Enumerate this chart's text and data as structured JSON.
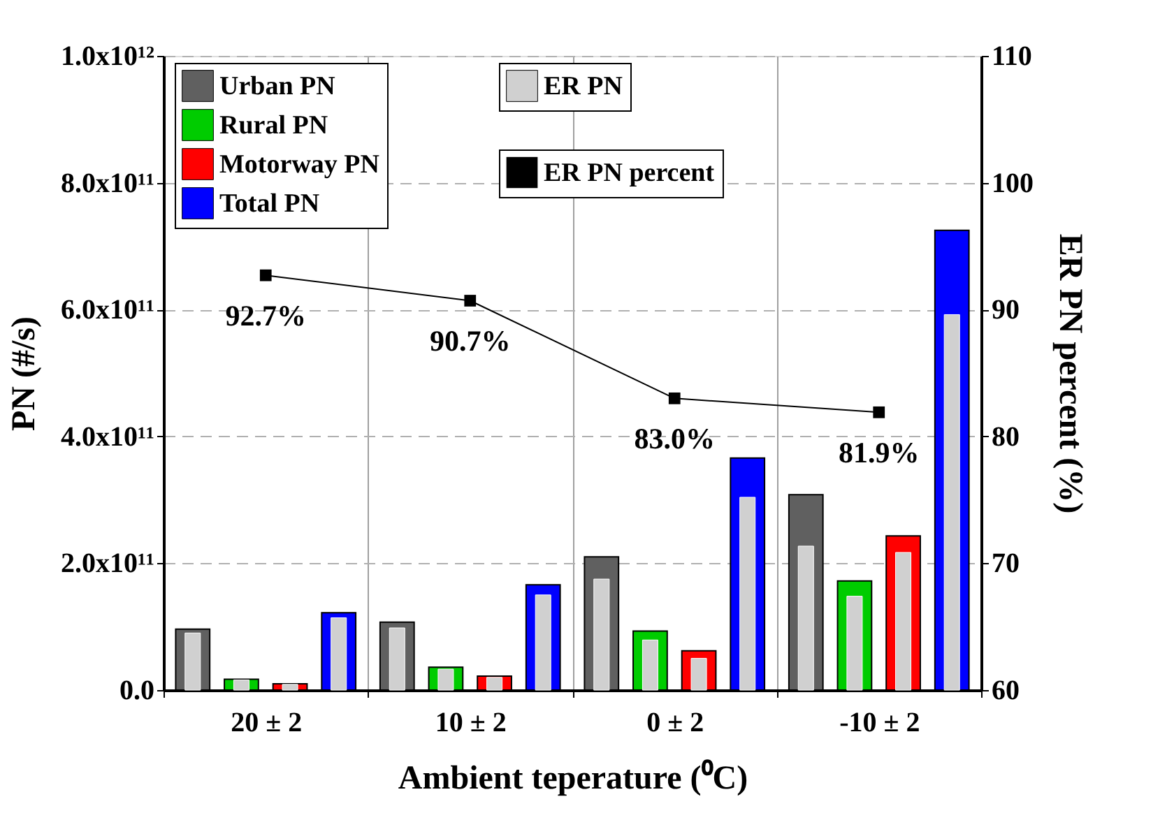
{
  "chart_data": {
    "type": "bar",
    "xlabel": "Ambient teperature (⁰C)",
    "ylabel": "PN (#/s)",
    "y2label": "ER PN percent (%)",
    "categories": [
      "20 ± 2",
      "10 ± 2",
      "0 ± 2",
      "-10 ± 2"
    ],
    "series": [
      {
        "name": "Urban PN",
        "color": "#606060",
        "values": [
          96000000000,
          107000000000,
          210000000000,
          308000000000
        ]
      },
      {
        "name": "Rural PN",
        "color": "#00cc00",
        "values": [
          17000000000,
          36000000000,
          93000000000,
          172000000000
        ]
      },
      {
        "name": "Motorway PN",
        "color": "#ff0000",
        "values": [
          10000000000,
          22000000000,
          62000000000,
          243000000000
        ]
      },
      {
        "name": "Total PN",
        "color": "#0000ff",
        "values": [
          122000000000,
          166000000000,
          366000000000,
          725000000000
        ]
      },
      {
        "name": "ER PN",
        "color": "#d0d0d0",
        "values": [
          90000000000,
          98000000000,
          175000000000,
          227000000000
        ]
      },
      {
        "color": "#d0d0d0",
        "values": [
          16000000000,
          33000000000,
          79000000000,
          148000000000
        ]
      },
      {
        "color": "#d0d0d0",
        "values": [
          9000000000,
          20000000000,
          50000000000,
          217000000000
        ]
      },
      {
        "color": "#d0d0d0",
        "values": [
          114000000000,
          150000000000,
          304000000000,
          592000000000
        ]
      },
      {
        "name": "ER PN percent",
        "type": "line",
        "axis": "y2",
        "color": "#000000",
        "values": [
          92.7,
          90.7,
          83.0,
          81.9
        ],
        "value_labels": [
          "92.7%",
          "90.7%",
          "83.0%",
          "81.9%"
        ]
      }
    ],
    "ylim": [
      0,
      1000000000000
    ],
    "yticks": [
      {
        "value": 0,
        "label": "0.0"
      },
      {
        "value": 200000000000,
        "label": "2.0x10¹¹"
      },
      {
        "value": 400000000000,
        "label": "4.0x10¹¹"
      },
      {
        "value": 600000000000,
        "label": "6.0x10¹¹"
      },
      {
        "value": 800000000000,
        "label": "8.0x10¹¹"
      },
      {
        "value": 1000000000000,
        "label": "1.0x10¹²"
      }
    ],
    "y2lim": [
      60,
      110
    ],
    "y2ticks": [
      60,
      70,
      80,
      90,
      100,
      110
    ],
    "marker": "square",
    "line_style": "solid",
    "grid": true,
    "legend": "top left"
  }
}
